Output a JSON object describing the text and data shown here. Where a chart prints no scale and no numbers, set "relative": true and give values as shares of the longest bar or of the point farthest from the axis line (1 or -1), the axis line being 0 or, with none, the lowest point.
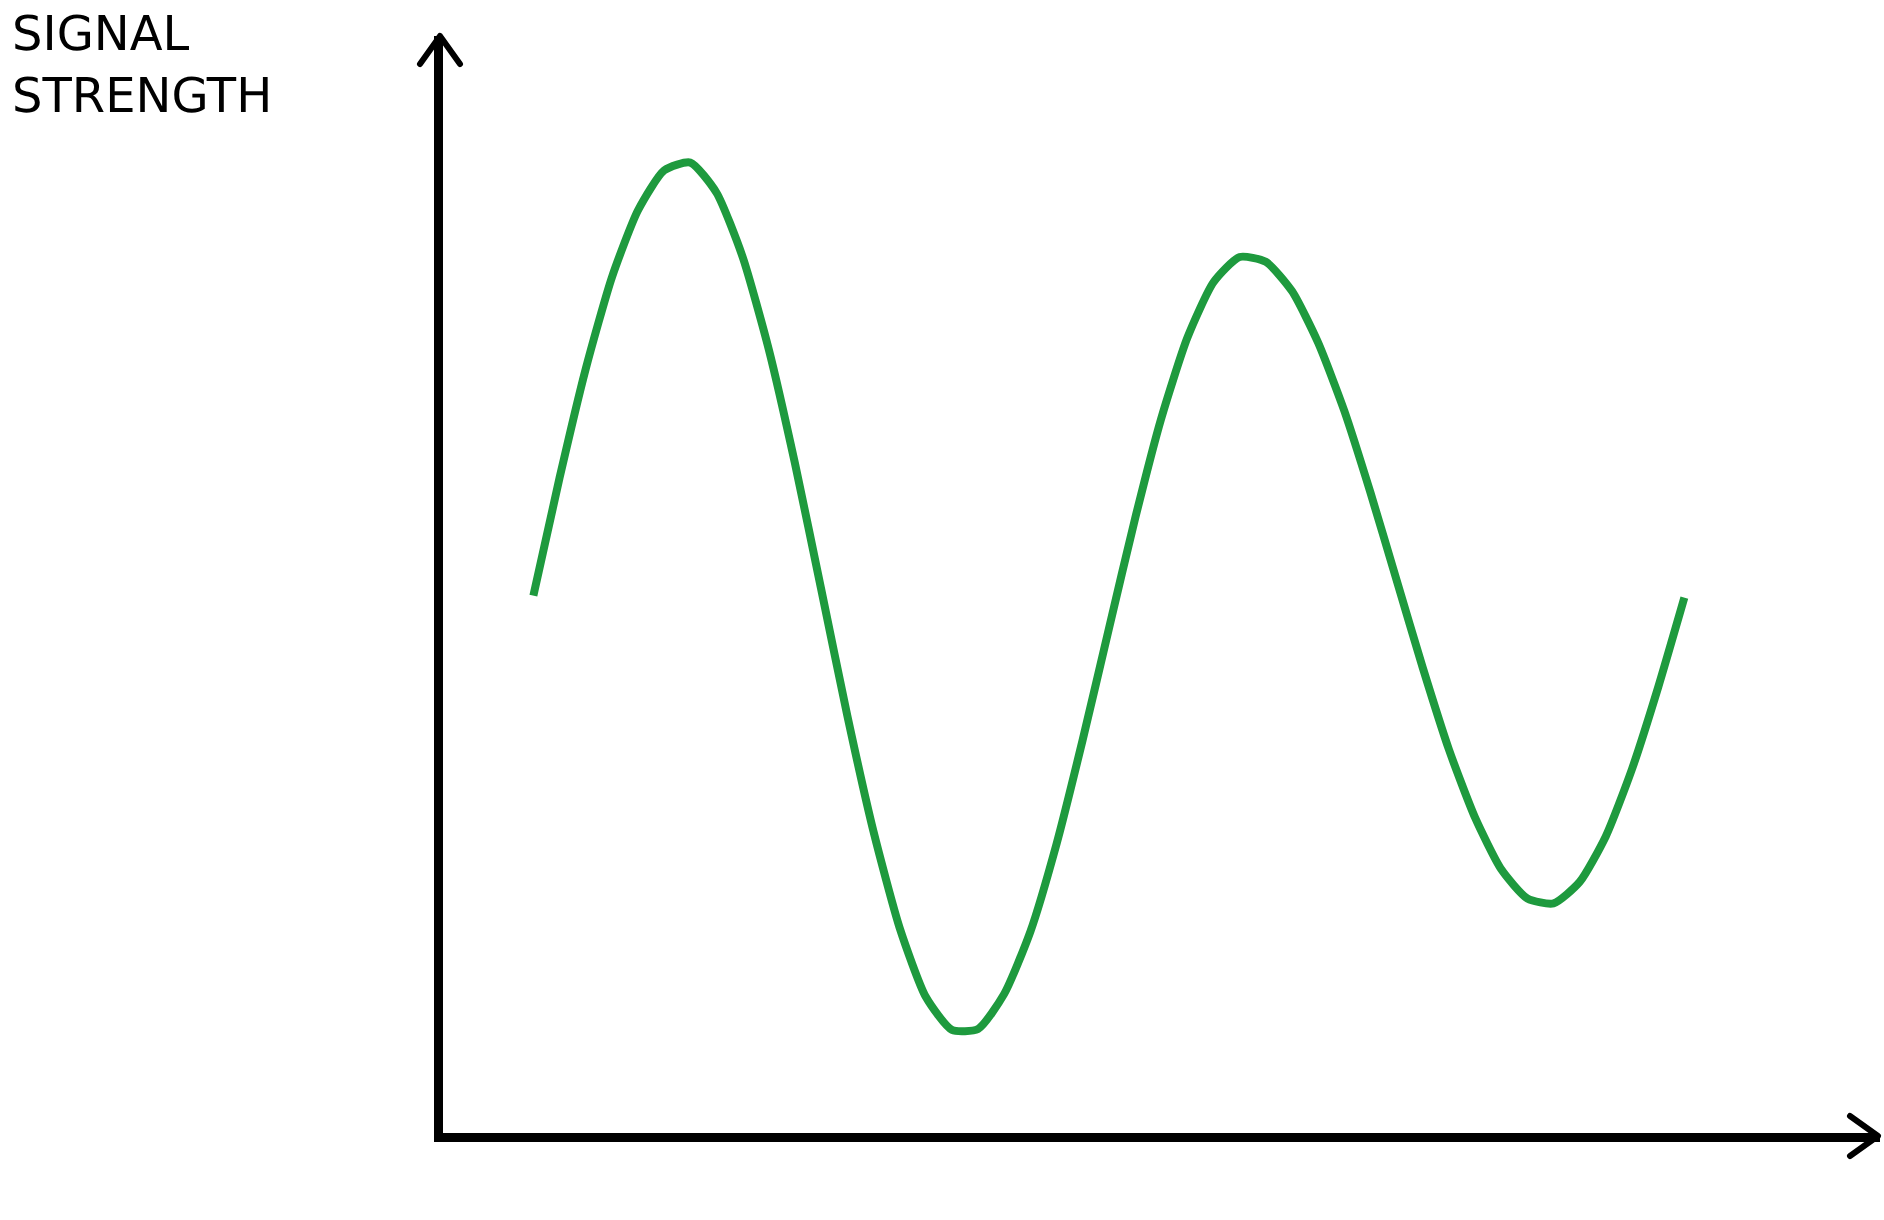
{
  "chart_data": {
    "type": "line",
    "annotations": [
      "SIGNAL STRENGTH"
    ],
    "relative": true,
    "color": "#1e9a3e",
    "categories": [
      null,
      null,
      null,
      null,
      null,
      null,
      null,
      null,
      null,
      null,
      null,
      null,
      null,
      null,
      null,
      null,
      null,
      null,
      null,
      null,
      null,
      null,
      null,
      null,
      null,
      null,
      null,
      null,
      null,
      null,
      null,
      null,
      null,
      null,
      null,
      null,
      null,
      null,
      null,
      null,
      null,
      null,
      null,
      null,
      null
    ],
    "values": [
      0.555,
      0.676,
      0.788,
      0.882,
      0.951,
      0.992,
      1,
      0.969,
      0.903,
      0.808,
      0.691,
      0.562,
      0.432,
      0.313,
      0.214,
      0.143,
      0.109,
      0.11,
      0.146,
      0.21,
      0.3,
      0.407,
      0.521,
      0.634,
      0.737,
      0.82,
      0.877,
      0.903,
      0.898,
      0.868,
      0.815,
      0.745,
      0.661,
      0.571,
      0.481,
      0.397,
      0.327,
      0.274,
      0.244,
      0.239,
      0.261,
      0.308,
      0.377,
      0.461,
      0.553
    ]
  }
}
